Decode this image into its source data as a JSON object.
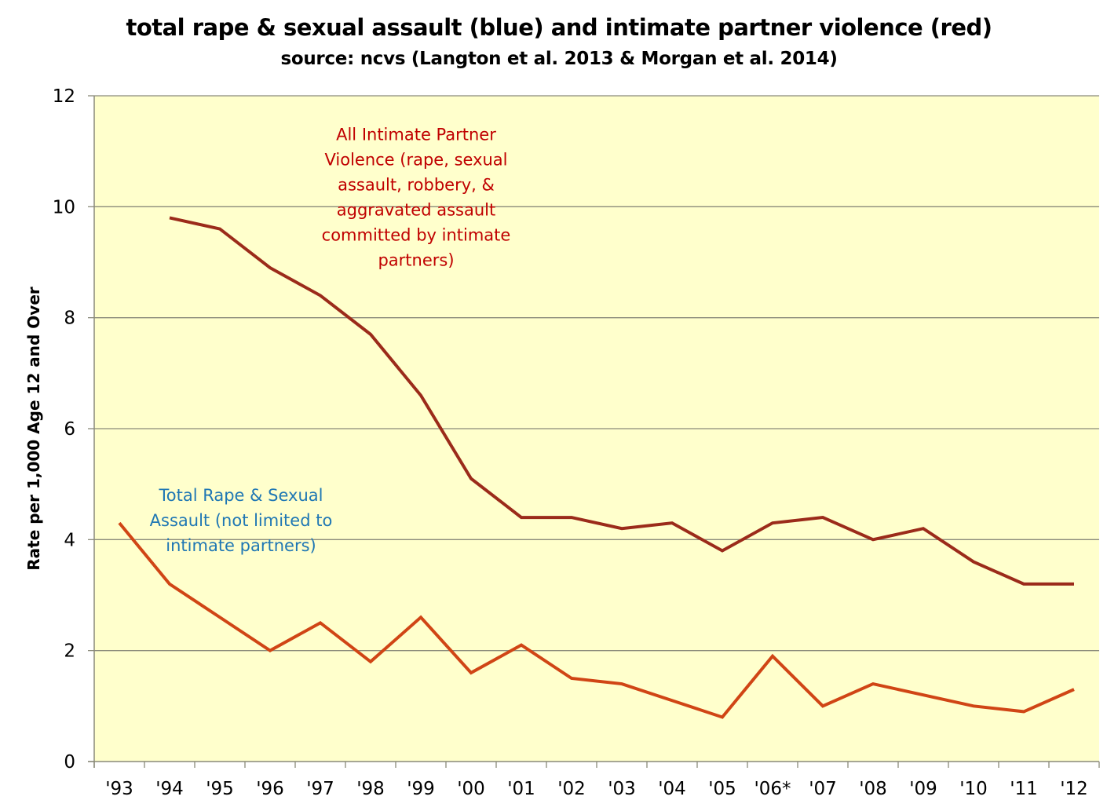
{
  "chart_data": {
    "type": "line",
    "title": "total rape & sexual assault (blue) and intimate partner violence (red)",
    "subtitle": "source: ncvs (Langton et al. 2013 & Morgan et al. 2014)",
    "xlabel": "",
    "ylabel": "Rate per 1,000 Age  12 and Over",
    "categories": [
      "'93",
      "'94",
      "'95",
      "'96",
      "'97",
      "'98",
      "'99",
      "'00",
      "'01",
      "'02",
      "'03",
      "'04",
      "'05",
      "'06*",
      "'07",
      "'08",
      "'09",
      "'10",
      "'11",
      "'12"
    ],
    "ylim": [
      0,
      12
    ],
    "yticks": [
      "0",
      "2",
      "4",
      "6",
      "8",
      "10",
      "12"
    ],
    "grid": true,
    "plot_background": "#ffffcc",
    "series": [
      {
        "name": "All Intimate Partner Violence",
        "color": "#9b2b1a",
        "values": [
          null,
          9.8,
          9.6,
          8.9,
          8.4,
          7.7,
          6.6,
          5.1,
          4.4,
          4.4,
          4.2,
          4.3,
          3.8,
          4.3,
          4.4,
          4.0,
          4.2,
          3.6,
          3.2,
          3.2
        ]
      },
      {
        "name": "Total Rape & Sexual Assault",
        "color": "#d04515",
        "values": [
          4.3,
          3.2,
          2.6,
          2.0,
          2.5,
          1.8,
          2.6,
          1.6,
          2.1,
          1.5,
          1.4,
          1.1,
          0.8,
          1.9,
          1.0,
          1.4,
          1.2,
          1.0,
          0.9,
          1.3
        ]
      }
    ],
    "annotations": [
      {
        "series": "All Intimate Partner Violence",
        "color": "#c00000",
        "anchor_category": "'99",
        "anchor_value": 11.2,
        "lines": [
          "All Intimate Partner",
          "Violence (rape, sexual",
          "assault, robbery, &",
          "aggravated assault",
          "committed by intimate",
          "partners)"
        ]
      },
      {
        "series": "Total Rape & Sexual Assault",
        "color": "#1f77b4",
        "anchor_category": "'95",
        "anchor_value": 4.7,
        "lines": [
          "Total Rape & Sexual",
          "Assault (not limited to",
          "intimate partners)"
        ]
      }
    ]
  }
}
